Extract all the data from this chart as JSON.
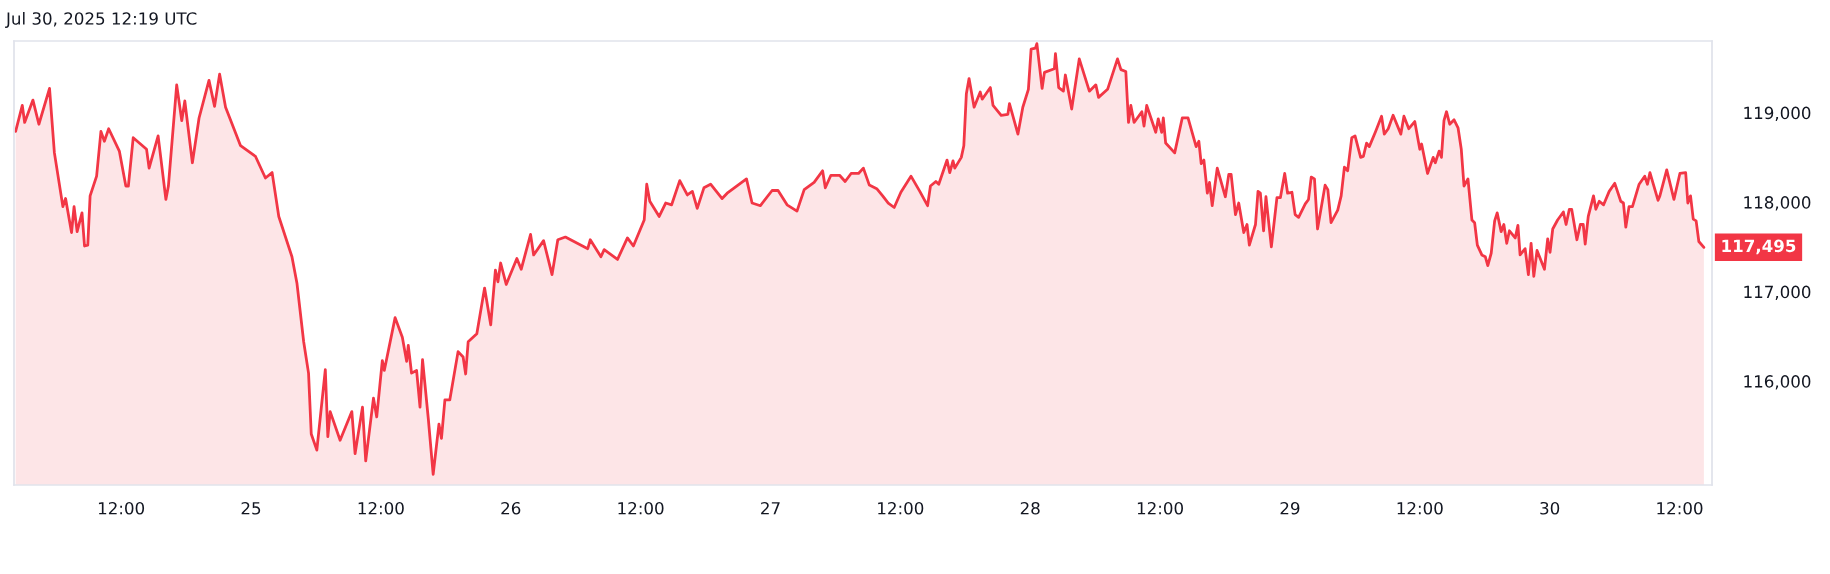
{
  "chart_data": {
    "type": "area",
    "x": [
      "2025-07-24T02:15",
      "2025-07-24T02:52",
      "2025-07-24T03:05",
      "2025-07-24T03:51",
      "2025-07-24T04:24",
      "2025-07-24T05:23",
      "2025-07-24T05:50",
      "2025-07-24T06:37",
      "2025-07-24T06:52",
      "2025-07-24T07:25",
      "2025-07-24T07:39",
      "2025-07-24T07:56",
      "2025-07-24T08:23",
      "2025-07-24T08:37",
      "2025-07-24T08:55",
      "2025-07-24T09:08",
      "2025-07-24T09:44",
      "2025-07-24T10:08",
      "2025-07-24T10:27",
      "2025-07-24T10:51",
      "2025-07-24T11:50",
      "2025-07-24T12:26",
      "2025-07-24T12:40",
      "2025-07-24T13:07",
      "2025-07-24T14:21",
      "2025-07-24T14:35",
      "2025-07-24T15:25",
      "2025-07-24T16:08",
      "2025-07-24T16:22",
      "2025-07-24T17:08",
      "2025-07-24T17:36",
      "2025-07-24T17:53",
      "2025-07-24T18:35",
      "2025-07-24T19:12",
      "2025-07-24T20:07",
      "2025-07-24T20:38",
      "2025-07-24T21:06",
      "2025-07-24T21:39",
      "2025-07-24T23:02",
      "2025-07-25T00:25",
      "2025-07-25T01:20",
      "2025-07-25T01:57",
      "2025-07-25T02:34",
      "2025-07-25T03:47",
      "2025-07-25T04:15",
      "2025-07-25T04:52",
      "2025-07-25T05:19",
      "2025-07-25T05:34",
      "2025-07-25T06:05",
      "2025-07-25T06:52",
      "2025-07-25T07:06",
      "2025-07-25T07:19",
      "2025-07-25T08:14",
      "2025-07-25T09:19",
      "2025-07-25T09:37",
      "2025-07-25T10:18",
      "2025-07-25T10:36",
      "2025-07-25T11:19",
      "2025-07-25T11:37",
      "2025-07-25T12:08",
      "2025-07-25T12:19",
      "2025-07-25T13:19",
      "2025-07-25T13:59",
      "2025-07-25T14:23",
      "2025-07-25T14:32",
      "2025-07-25T14:50",
      "2025-07-25T15:18",
      "2025-07-25T15:37",
      "2025-07-25T15:51",
      "2025-07-25T16:23",
      "2025-07-25T16:50",
      "2025-07-25T17:22",
      "2025-07-25T17:36",
      "2025-07-25T17:55",
      "2025-07-25T18:22",
      "2025-07-25T19:08",
      "2025-07-25T19:36",
      "2025-07-25T19:50",
      "2025-07-25T20:04",
      "2025-07-25T20:52",
      "2025-07-25T21:35",
      "2025-07-25T22:09",
      "2025-07-25T22:35",
      "2025-07-25T22:49",
      "2025-07-25T23:04",
      "2025-07-25T23:35",
      "2025-07-26T00:34",
      "2025-07-26T00:58",
      "2025-07-26T01:50",
      "2025-07-26T02:07",
      "2025-07-26T03:02",
      "2025-07-26T03:49",
      "2025-07-26T04:21",
      "2025-07-26T05:03",
      "2025-07-26T07:07",
      "2025-07-26T07:21",
      "2025-07-26T08:20",
      "2025-07-26T08:38",
      "2025-07-26T09:52",
      "2025-07-26T10:47",
      "2025-07-26T11:20",
      "2025-07-26T12:20",
      "2025-07-26T12:34",
      "2025-07-26T12:51",
      "2025-07-26T13:43",
      "2025-07-26T14:19",
      "2025-07-26T14:52",
      "2025-07-26T15:37",
      "2025-07-26T16:19",
      "2025-07-26T16:47",
      "2025-07-26T17:14",
      "2025-07-26T17:51",
      "2025-07-26T18:28",
      "2025-07-26T19:32",
      "2025-07-26T20:00",
      "2025-07-26T21:47",
      "2025-07-26T22:18",
      "2025-07-26T23:04",
      "2025-07-27T00:09",
      "2025-07-27T00:42",
      "2025-07-27T01:32",
      "2025-07-27T02:27",
      "2025-07-27T03:07",
      "2025-07-27T04:02",
      "2025-07-27T04:49",
      "2025-07-27T05:04",
      "2025-07-27T05:35",
      "2025-07-27T06:23",
      "2025-07-27T06:54",
      "2025-07-27T07:27",
      "2025-07-27T08:08",
      "2025-07-27T08:35",
      "2025-07-27T09:08",
      "2025-07-27T09:49",
      "2025-07-27T10:22",
      "2025-07-27T10:53",
      "2025-07-27T11:26",
      "2025-07-27T12:03",
      "2025-07-27T12:59",
      "2025-07-27T13:48",
      "2025-07-27T14:31",
      "2025-07-27T14:47",
      "2025-07-27T15:17",
      "2025-07-27T15:33",
      "2025-07-27T16:19",
      "2025-07-27T16:34",
      "2025-07-27T16:52",
      "2025-07-27T17:02",
      "2025-07-27T17:38",
      "2025-07-27T17:52",
      "2025-07-27T18:06",
      "2025-07-27T18:21",
      "2025-07-27T18:49",
      "2025-07-27T19:23",
      "2025-07-27T19:34",
      "2025-07-27T20:19",
      "2025-07-27T20:34",
      "2025-07-27T21:19",
      "2025-07-27T21:56",
      "2025-07-27T22:05",
      "2025-07-27T22:52",
      "2025-07-27T23:19",
      "2025-07-27T23:50",
      "2025-07-28T00:05",
      "2025-07-28T00:29",
      "2025-07-28T00:37",
      "2025-07-28T01:06",
      "2025-07-28T01:19",
      "2025-07-28T02:14",
      "2025-07-28T02:20",
      "2025-07-28T02:38",
      "2025-07-28T03:04",
      "2025-07-28T03:15",
      "2025-07-28T03:50",
      "2025-07-28T04:32",
      "2025-07-28T05:28",
      "2025-07-28T06:04",
      "2025-07-28T06:19",
      "2025-07-28T07:09",
      "2025-07-28T08:04",
      "2025-07-28T08:23",
      "2025-07-28T08:50",
      "2025-07-28T09:05",
      "2025-07-28T09:18",
      "2025-07-28T09:36",
      "2025-07-28T10:19",
      "2025-07-28T10:31",
      "2025-07-28T10:46",
      "2025-07-28T11:36",
      "2025-07-28T11:50",
      "2025-07-28T12:09",
      "2025-07-28T12:18",
      "2025-07-28T12:31",
      "2025-07-28T13:21",
      "2025-07-28T14:03",
      "2025-07-28T14:35",
      "2025-07-28T15:20",
      "2025-07-28T15:35",
      "2025-07-28T15:48",
      "2025-07-28T16:03",
      "2025-07-28T16:22",
      "2025-07-28T16:34",
      "2025-07-28T16:49",
      "2025-07-28T17:17",
      "2025-07-28T18:02",
      "2025-07-28T18:21",
      "2025-07-28T18:34",
      "2025-07-28T18:58",
      "2025-07-28T19:16",
      "2025-07-28T19:44",
      "2025-07-28T20:02",
      "2025-07-28T20:15",
      "2025-07-28T20:49",
      "2025-07-28T21:03",
      "2025-07-28T21:16",
      "2025-07-28T21:34",
      "2025-07-28T21:47",
      "2025-07-28T22:17",
      "2025-07-28T22:48",
      "2025-07-28T23:07",
      "2025-07-28T23:31",
      "2025-07-28T23:47",
      "2025-07-29T00:11",
      "2025-07-29T00:29",
      "2025-07-29T00:48",
      "2025-07-29T01:25",
      "2025-07-29T01:43",
      "2025-07-29T01:58",
      "2025-07-29T02:16",
      "2025-07-29T02:33",
      "2025-07-29T03:15",
      "2025-07-29T03:30",
      "2025-07-29T03:48",
      "2025-07-29T04:25",
      "2025-07-29T04:44",
      "2025-07-29T05:02",
      "2025-07-29T05:20",
      "2025-07-29T05:43",
      "2025-07-29T06:01",
      "2025-07-29T06:32",
      "2025-07-29T06:47",
      "2025-07-29T07:05",
      "2025-07-29T07:20",
      "2025-07-29T07:55",
      "2025-07-29T08:28",
      "2025-07-29T08:43",
      "2025-07-29T09:05",
      "2025-07-29T09:32",
      "2025-07-29T10:15",
      "2025-07-29T10:32",
      "2025-07-29T10:59",
      "2025-07-29T11:32",
      "2025-07-29T12:00",
      "2025-07-29T12:10",
      "2025-07-29T12:43",
      "2025-07-29T13:14",
      "2025-07-29T13:26",
      "2025-07-29T13:47",
      "2025-07-29T14:00",
      "2025-07-29T14:14",
      "2025-07-29T14:28",
      "2025-07-29T14:46",
      "2025-07-29T15:10",
      "2025-07-29T15:32",
      "2025-07-29T15:50",
      "2025-07-29T16:05",
      "2025-07-29T16:27",
      "2025-07-29T16:49",
      "2025-07-29T17:04",
      "2025-07-29T17:19",
      "2025-07-29T17:44",
      "2025-07-29T18:03",
      "2025-07-29T18:17",
      "2025-07-29T18:36",
      "2025-07-29T18:55",
      "2025-07-29T19:09",
      "2025-07-29T19:31",
      "2025-07-29T19:46",
      "2025-07-29T20:02",
      "2025-07-29T20:17",
      "2025-07-29T20:49",
      "2025-07-29T21:04",
      "2025-07-29T21:16",
      "2025-07-29T21:44",
      "2025-07-29T22:02",
      "2025-07-29T22:17",
      "2025-07-29T22:32",
      "2025-07-29T22:50",
      "2025-07-29T23:31",
      "2025-07-29T23:49",
      "2025-07-30T00:02",
      "2025-07-30T00:17",
      "2025-07-30T00:44",
      "2025-07-30T01:16",
      "2025-07-30T01:31",
      "2025-07-30T01:49",
      "2025-07-30T02:02",
      "2025-07-30T02:31",
      "2025-07-30T02:50",
      "2025-07-30T03:06",
      "2025-07-30T03:17",
      "2025-07-30T03:34",
      "2025-07-30T04:03",
      "2025-07-30T04:16",
      "2025-07-30T04:35",
      "2025-07-30T04:59",
      "2025-07-30T05:30",
      "2025-07-30T06:01",
      "2025-07-30T06:34",
      "2025-07-30T06:49",
      "2025-07-30T07:02",
      "2025-07-30T07:20",
      "2025-07-30T07:39",
      "2025-07-30T08:16",
      "2025-07-30T08:47",
      "2025-07-30T09:02",
      "2025-07-30T09:16",
      "2025-07-30T10:01",
      "2025-07-30T10:11",
      "2025-07-30T10:49",
      "2025-07-30T11:29",
      "2025-07-30T12:02",
      "2025-07-30T12:34",
      "2025-07-30T12:46",
      "2025-07-30T13:01",
      "2025-07-30T13:16",
      "2025-07-30T13:32",
      "2025-07-30T13:47",
      "2025-07-30T14:15"
    ],
    "series": [
      {
        "color": "#f23645",
        "values": [
          118790,
          119080,
          118890,
          119140,
          118870,
          119270,
          118550,
          117950,
          118040,
          117660,
          117950,
          117670,
          117880,
          117510,
          117520,
          118070,
          118290,
          118790,
          118680,
          118820,
          118570,
          118180,
          118180,
          118720,
          118590,
          118380,
          118740,
          118030,
          118180,
          119310,
          118910,
          119130,
          118440,
          118940,
          119360,
          119070,
          119430,
          119060,
          118630,
          118510,
          118270,
          118330,
          117840,
          117390,
          117090,
          116440,
          116090,
          115410,
          115230,
          116130,
          115380,
          115660,
          115340,
          115660,
          115190,
          115710,
          115110,
          115810,
          115600,
          116230,
          116120,
          116710,
          116490,
          116220,
          116400,
          116090,
          116120,
          115710,
          116240,
          115580,
          114960,
          115520,
          115360,
          115790,
          115790,
          116330,
          116270,
          116080,
          116440,
          116530,
          117040,
          116630,
          117240,
          117110,
          117320,
          117080,
          117370,
          117250,
          117640,
          117410,
          117570,
          117190,
          117580,
          117610,
          117480,
          117580,
          117390,
          117470,
          117360,
          117600,
          117510,
          117800,
          118200,
          118010,
          117840,
          117990,
          117970,
          118240,
          118080,
          118120,
          117930,
          118160,
          118200,
          118040,
          118100,
          118260,
          117990,
          117960,
          118130,
          118130,
          117970,
          117900,
          118140,
          118220,
          118350,
          118160,
          118300,
          118300,
          118230,
          118320,
          118320,
          118380,
          118190,
          118150,
          118070,
          117990,
          117940,
          118110,
          118290,
          118120,
          117960,
          118180,
          118230,
          118200,
          118470,
          118330,
          118460,
          118380,
          118500,
          118630,
          119210,
          119380,
          119060,
          119230,
          119150,
          119280,
          119080,
          118970,
          118980,
          119100,
          118760,
          119060,
          119260,
          119710,
          119720,
          119770,
          119270,
          119450,
          119490,
          119660,
          119280,
          119240,
          119420,
          119040,
          119600,
          119240,
          119310,
          119170,
          119260,
          119600,
          119480,
          119460,
          118890,
          119080,
          118890,
          119010,
          118850,
          119080,
          118780,
          118930,
          118780,
          118940,
          118660,
          118550,
          118940,
          118940,
          118620,
          118680,
          118430,
          118470,
          118100,
          118220,
          117960,
          118380,
          118060,
          118310,
          118310,
          117860,
          117990,
          117660,
          117750,
          117520,
          117750,
          118120,
          118100,
          117680,
          118060,
          117500,
          118050,
          118050,
          118320,
          118100,
          118110,
          117860,
          117830,
          117980,
          118030,
          118280,
          118260,
          117700,
          118190,
          118140,
          117770,
          117910,
          118070,
          118390,
          118350,
          118720,
          118740,
          118500,
          118510,
          118660,
          118620,
          118790,
          118960,
          118760,
          118820,
          118970,
          118760,
          118960,
          118820,
          118900,
          118590,
          118650,
          118320,
          118500,
          118440,
          118570,
          118500,
          118910,
          119010,
          118870,
          118920,
          118830,
          118590,
          118180,
          118260,
          117800,
          117770,
          117520,
          117410,
          117390,
          117290,
          117430,
          117790,
          117880,
          117670,
          117750,
          117540,
          117680,
          117600,
          117740,
          117410,
          117480,
          117190,
          117540,
          117170,
          117460,
          117250,
          117590,
          117440,
          117700,
          117800,
          117890,
          117750,
          117920,
          117920,
          117580,
          117750,
          117750,
          117530,
          117840,
          118070,
          117920,
          118010,
          117970,
          118120,
          118210,
          118010,
          117990,
          117720,
          117950,
          117950,
          118200,
          118290,
          118200,
          118330,
          118020,
          118070,
          118360,
          118030,
          118320,
          118330,
          117990,
          118070,
          117810,
          117790,
          117560,
          117495
        ]
      }
    ],
    "xlim": [
      "2025-07-24T02:06",
      "2025-07-30T15:00"
    ],
    "xticks": [
      {
        "value": "2025-07-24T12:00",
        "label": "12:00"
      },
      {
        "value": "2025-07-25",
        "label": "25"
      },
      {
        "value": "2025-07-25T12:00",
        "label": "12:00"
      },
      {
        "value": "2025-07-26",
        "label": "26"
      },
      {
        "value": "2025-07-26T12:00",
        "label": "12:00"
      },
      {
        "value": "2025-07-27",
        "label": "27"
      },
      {
        "value": "2025-07-27T12:00",
        "label": "12:00"
      },
      {
        "value": "2025-07-28",
        "label": "28"
      },
      {
        "value": "2025-07-28T12:00",
        "label": "12:00"
      },
      {
        "value": "2025-07-29",
        "label": "29"
      },
      {
        "value": "2025-07-29T12:00",
        "label": "12:00"
      },
      {
        "value": "2025-07-30",
        "label": "30"
      },
      {
        "value": "2025-07-30T12:00",
        "label": "12:00"
      }
    ],
    "ylim": [
      114840,
      119800
    ],
    "yticks": [
      {
        "value": 116000,
        "label": "116,000"
      },
      {
        "value": 117000,
        "label": "117,000"
      },
      {
        "value": 118000,
        "label": "118,000"
      },
      {
        "value": 119000,
        "label": "119,000"
      }
    ],
    "annotations": [
      "Jul 30, 2025 12:19 UTC",
      {
        "text": "117,495",
        "x": "2025-07-30T14:15",
        "y": 117495
      }
    ],
    "grid": false,
    "legend": false
  }
}
